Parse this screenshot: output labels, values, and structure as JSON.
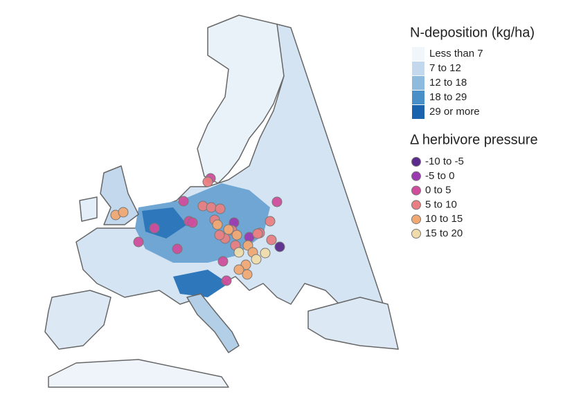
{
  "legend_deposition": {
    "title": "N-deposition (kg/ha)",
    "items": [
      {
        "label": "Less than 7",
        "color": "#f1f6fb"
      },
      {
        "label": "7 to 12",
        "color": "#c3d8ec"
      },
      {
        "label": "12 to 18",
        "color": "#8ebadd"
      },
      {
        "label": "18 to 29",
        "color": "#4a90c8"
      },
      {
        "label": "29 or more",
        "color": "#1c63ad"
      }
    ]
  },
  "legend_herbivore": {
    "title": "Δ herbivore pressure",
    "items": [
      {
        "label": "-10 to -5",
        "color": "#5b2a8c"
      },
      {
        "label": "-5 to 0",
        "color": "#9b3ab0"
      },
      {
        "label": "0 to 5",
        "color": "#cf4d9c"
      },
      {
        "label": "5 to 10",
        "color": "#e97f82"
      },
      {
        "label": "10 to 15",
        "color": "#f1a873"
      },
      {
        "label": "15 to 20",
        "color": "#efdcaa"
      }
    ]
  }
}
